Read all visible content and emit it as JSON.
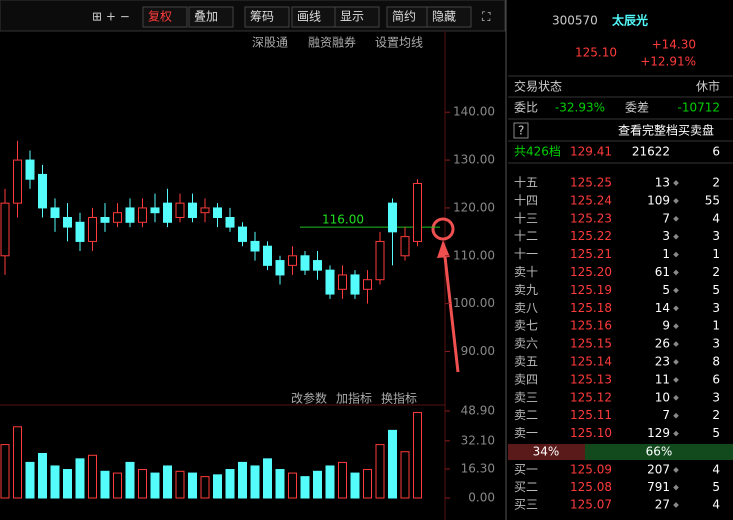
{
  "toolbar": {
    "buttons": [
      "复权",
      "叠加",
      "筹码",
      "画线",
      "显示",
      "简约",
      "隐藏"
    ],
    "links": [
      "深股通",
      "融资融券",
      "设置均线"
    ],
    "sub_links": [
      "改参数",
      "加指标",
      "换指标"
    ]
  },
  "chart_data": {
    "type": "candlestick",
    "candles": [
      [
        110,
        121,
        124,
        106
      ],
      [
        121,
        130,
        134,
        118
      ],
      [
        130,
        126,
        132,
        124
      ],
      [
        127,
        120,
        129,
        118
      ],
      [
        120,
        118,
        122,
        115
      ],
      [
        118,
        116,
        121,
        113
      ],
      [
        117,
        113,
        119,
        111
      ],
      [
        113,
        118,
        120,
        111
      ],
      [
        118,
        117,
        121,
        115
      ],
      [
        117,
        119,
        121,
        116
      ],
      [
        120,
        117,
        122,
        116
      ],
      [
        117,
        120,
        122,
        116
      ],
      [
        120,
        119,
        123,
        117
      ],
      [
        121,
        117,
        124,
        116
      ],
      [
        118,
        121,
        123,
        117
      ],
      [
        121,
        118,
        123,
        117
      ],
      [
        119,
        120,
        122,
        117
      ],
      [
        120,
        118,
        121,
        116
      ],
      [
        118,
        116,
        120,
        115
      ],
      [
        116,
        113,
        117,
        112
      ],
      [
        113,
        111,
        115,
        109
      ],
      [
        112,
        108,
        113,
        107
      ],
      [
        109,
        106,
        110,
        104
      ],
      [
        108,
        110,
        112,
        106
      ],
      [
        110,
        107,
        111,
        106
      ],
      [
        109,
        107,
        111,
        105
      ],
      [
        107,
        102,
        108,
        101
      ],
      [
        103,
        106,
        108,
        101
      ],
      [
        106,
        102,
        107,
        101
      ],
      [
        103,
        105,
        107,
        100
      ],
      [
        105,
        113,
        115,
        104
      ],
      [
        121,
        115,
        122,
        108
      ],
      [
        110,
        114,
        116,
        109
      ],
      [
        113,
        125.1,
        126,
        112
      ]
    ],
    "volumes": [
      30,
      40,
      20,
      25,
      18,
      16,
      22,
      24,
      15,
      14,
      20,
      16,
      14,
      18,
      15,
      14,
      12,
      13,
      16,
      20,
      18,
      22,
      16,
      14,
      12,
      15,
      18,
      20,
      14,
      16,
      30,
      38,
      26,
      48
    ],
    "ylim": [
      83,
      153
    ],
    "yticks": [
      {
        "value": 90,
        "label": "90.00"
      },
      {
        "value": 100,
        "label": "100.00"
      },
      {
        "value": 110,
        "label": "110.00"
      },
      {
        "value": 120,
        "label": "120.00"
      },
      {
        "value": 130,
        "label": "130.00"
      },
      {
        "value": 140,
        "label": "140.00"
      }
    ],
    "vol_ylim": [
      0,
      50
    ],
    "vol_yticks": [
      {
        "value": 0,
        "label": "0.00"
      },
      {
        "value": 16.3,
        "label": "16.30"
      },
      {
        "value": 32.1,
        "label": "32.10"
      },
      {
        "value": 48.9,
        "label": "48.90"
      }
    ],
    "ma_label": {
      "value": 116,
      "label": "116.00"
    }
  },
  "quote": {
    "code": "300570",
    "name": "太辰光",
    "price": "125.10",
    "change": "+14.30",
    "change_pct": "+12.91%",
    "status_label": "交易状态",
    "status": "休市",
    "ratio_label": "委比",
    "ratio": "-32.93%",
    "diff_label": "委差",
    "diff": "-10712",
    "help": "?",
    "full_book": "查看完整档买卖盘",
    "levels_label": "共426档",
    "levels_price": "129.41",
    "levels_vol": "21622",
    "levels_count": "6"
  },
  "order_book": {
    "asks": [
      [
        "十五",
        "125.25",
        "13",
        "2"
      ],
      [
        "十四",
        "125.24",
        "109",
        "55"
      ],
      [
        "十三",
        "125.23",
        "7",
        "4"
      ],
      [
        "十二",
        "125.22",
        "3",
        "3"
      ],
      [
        "十一",
        "125.21",
        "1",
        "1"
      ],
      [
        "卖十",
        "125.20",
        "61",
        "2"
      ],
      [
        "卖九",
        "125.19",
        "5",
        "5"
      ],
      [
        "卖八",
        "125.18",
        "14",
        "3"
      ],
      [
        "卖七",
        "125.16",
        "9",
        "1"
      ],
      [
        "卖六",
        "125.15",
        "26",
        "3"
      ],
      [
        "卖五",
        "125.14",
        "23",
        "8"
      ],
      [
        "卖四",
        "125.13",
        "11",
        "6"
      ],
      [
        "卖三",
        "125.12",
        "10",
        "3"
      ],
      [
        "卖二",
        "125.11",
        "7",
        "2"
      ],
      [
        "卖一",
        "125.10",
        "129",
        "5"
      ]
    ],
    "split": [
      "34%",
      "66%"
    ],
    "bids": [
      [
        "买一",
        "125.09",
        "207",
        "4"
      ],
      [
        "买二",
        "125.08",
        "791",
        "5"
      ],
      [
        "买三",
        "125.07",
        "27",
        "4"
      ]
    ]
  }
}
